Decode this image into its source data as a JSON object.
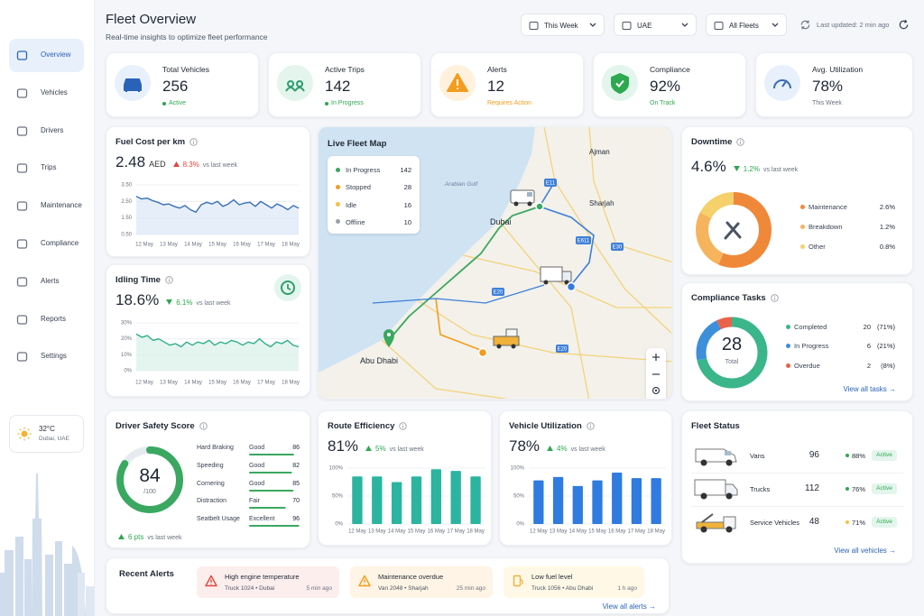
{
  "sidebar": {
    "nav": [
      "Overview",
      "Vehicles",
      "Drivers",
      "Trips",
      "Maintenance",
      "Compliance",
      "Alerts",
      "Reports",
      "Settings"
    ],
    "weather": {
      "temp": "32°C",
      "location": "Dubai, UAE"
    }
  },
  "header": {
    "title": "Fleet Overview",
    "subtitle": "Real-time insights to optimize fleet performance",
    "filters": [
      "This Week",
      "UAE",
      "All Fleets"
    ],
    "last_updated": "Last updated: 2 min ago"
  },
  "kpis": [
    {
      "label": "Total Vehicles",
      "value": "256",
      "status": "Active"
    },
    {
      "label": "Active Trips",
      "value": "142",
      "status": "In Progress"
    },
    {
      "label": "Alerts",
      "value": "12",
      "status": "Requires Action"
    },
    {
      "label": "Compliance",
      "value": "92%",
      "status": "On Track"
    },
    {
      "label": "Avg. Utilization",
      "value": "78%",
      "status": "This Week"
    }
  ],
  "fuel_cost": {
    "title": "Fuel Cost per km",
    "value": "2.48",
    "unit": "AED",
    "change": "8.3%",
    "compare": "vs last week",
    "chart": {
      "type": "line",
      "color": "#3a6fb8",
      "categories": [
        "12 May",
        "13 May",
        "14 May",
        "15 May",
        "16 May",
        "17 May",
        "18 May"
      ],
      "values": [
        2.8,
        2.65,
        2.7,
        2.55,
        2.45,
        2.3,
        2.35,
        2.2,
        2.1,
        2.25,
        2.0,
        1.85,
        2.3,
        2.45,
        2.35,
        2.5,
        2.2,
        2.35,
        2.6,
        2.3,
        2.4,
        2.45,
        2.2,
        2.5,
        2.3,
        2.1,
        2.35,
        2.2,
        2.0,
        2.25,
        2.1
      ],
      "ylim": [
        0.5,
        3.5
      ],
      "yticks": [
        {
          "value": 0.5,
          "label": "0.50"
        },
        {
          "value": 1.5,
          "label": "1.50"
        },
        {
          "value": 2.5,
          "label": "2.50"
        },
        {
          "value": 3.5,
          "label": "3.50"
        }
      ]
    }
  },
  "idling": {
    "title": "Idling Time",
    "value": "18.6%",
    "change": "6.1%",
    "compare": "vs last week",
    "chart": {
      "type": "line",
      "color": "#2fae8a",
      "categories": [
        "12 May",
        "13 May",
        "14 May",
        "15 May",
        "16 May",
        "17 May",
        "18 May"
      ],
      "values": [
        23,
        21,
        22,
        19,
        20,
        18,
        16,
        17,
        15,
        18,
        16,
        18,
        17,
        19,
        16,
        18,
        17,
        19,
        18,
        16,
        18,
        17,
        20,
        17,
        15,
        18,
        17,
        19,
        16,
        15
      ],
      "ylim": [
        0,
        30
      ],
      "yticks": [
        {
          "value": 0,
          "label": "0%"
        },
        {
          "value": 10,
          "label": "10%"
        },
        {
          "value": 20,
          "label": "20%"
        },
        {
          "value": 30,
          "label": "30%"
        }
      ]
    }
  },
  "map": {
    "title": "Live Fleet Map",
    "legend": [
      {
        "label": "In Progress",
        "count": 142,
        "color": "#3aa860"
      },
      {
        "label": "Stopped",
        "count": 28,
        "color": "#f29d1f"
      },
      {
        "label": "Idle",
        "count": 16,
        "color": "#f5c342"
      },
      {
        "label": "Offline",
        "count": 10,
        "color": "#9aa0a6"
      }
    ],
    "places": [
      "Ajman",
      "Sharjah",
      "Dubai",
      "Abu Dhabi",
      "Arabian Gulf"
    ],
    "road_labels": [
      "E11",
      "E611",
      "E30",
      "E20",
      "E20"
    ]
  },
  "downtime": {
    "title": "Downtime",
    "value": "4.6%",
    "change": "1.2%",
    "compare": "vs last week",
    "labels": [
      "Maintenance",
      "Breakdown",
      "Other"
    ],
    "values": [
      2.6,
      1.2,
      0.8
    ],
    "value_labels": [
      "2.6%",
      "1.2%",
      "0.8%"
    ],
    "colors": [
      "#f0883a",
      "#f6b45c",
      "#f5d06b"
    ]
  },
  "compliance_tasks": {
    "title": "Compliance Tasks",
    "total": 28,
    "total_label": "Total",
    "labels": [
      "Completed",
      "In Progress",
      "Overdue"
    ],
    "values": [
      20,
      6,
      2
    ],
    "percents": [
      "(71%)",
      "(21%)",
      "(8%)"
    ],
    "colors": [
      "#3bb58a",
      "#3d8fd9",
      "#e8634a"
    ],
    "link": "View all tasks →"
  },
  "driver_safety": {
    "title": "Driver Safety Score",
    "score": 84,
    "out_of": {
      "value": 100,
      "label": "/100"
    },
    "metrics": [
      {
        "name": "Hard Braking",
        "rating": "Good",
        "value": 86
      },
      {
        "name": "Speeding",
        "rating": "Good",
        "value": 82
      },
      {
        "name": "Cornering",
        "rating": "Good",
        "value": 85
      },
      {
        "name": "Distraction",
        "rating": "Fair",
        "value": 70
      },
      {
        "name": "Seatbelt Usage",
        "rating": "Excellent",
        "value": 96
      }
    ],
    "change": "6 pts",
    "compare": "vs last week"
  },
  "route_efficiency": {
    "title": "Route Efficiency",
    "value": "81%",
    "change": "5%",
    "compare": "vs last week",
    "chart": {
      "type": "bar",
      "color": "#2bb5a0",
      "categories": [
        "12 May",
        "13 May",
        "14 May",
        "15 May",
        "16 May",
        "17 May",
        "18 May"
      ],
      "values": [
        85,
        85,
        75,
        85,
        98,
        95,
        85
      ],
      "ylim": [
        0,
        100
      ],
      "yticks": [
        {
          "value": 0,
          "label": "0%"
        },
        {
          "value": 50,
          "label": "50%"
        },
        {
          "value": 100,
          "label": "100%"
        }
      ]
    }
  },
  "vehicle_utilization": {
    "title": "Vehicle Utilization",
    "value": "78%",
    "change": "4%",
    "compare": "vs last week",
    "chart": {
      "type": "bar",
      "color": "#2f7be0",
      "categories": [
        "12 May",
        "13 May",
        "14 May",
        "15 May",
        "16 May",
        "17 May",
        "18 May"
      ],
      "values": [
        78,
        84,
        68,
        78,
        92,
        82,
        82
      ],
      "ylim": [
        0,
        100
      ],
      "yticks": [
        {
          "value": 0,
          "label": "0%"
        },
        {
          "value": 50,
          "label": "50%"
        },
        {
          "value": 100,
          "label": "100%"
        }
      ]
    }
  },
  "fleet_status": {
    "title": "Fleet Status",
    "rows": [
      {
        "name": "Vans",
        "count": 96,
        "percent": "88%",
        "status": "Active"
      },
      {
        "name": "Trucks",
        "count": 112,
        "percent": "76%",
        "status": "Active"
      },
      {
        "name": "Service Vehicles",
        "count": 48,
        "percent": "71%",
        "status": "Active"
      }
    ],
    "link": "View all vehicles →"
  },
  "recent_alerts": {
    "title": "Recent Alerts",
    "items": [
      {
        "title": "High engine temperature",
        "detail": "Truck 1024 • Dubai",
        "time": "5 min ago"
      },
      {
        "title": "Maintenance overdue",
        "detail": "Van 2048 • Sharjah",
        "time": "25 min ago"
      },
      {
        "title": "Low fuel level",
        "detail": "Truck 1056 • Abu Dhabi",
        "time": "1 h ago"
      }
    ],
    "link": "View all alerts →"
  }
}
